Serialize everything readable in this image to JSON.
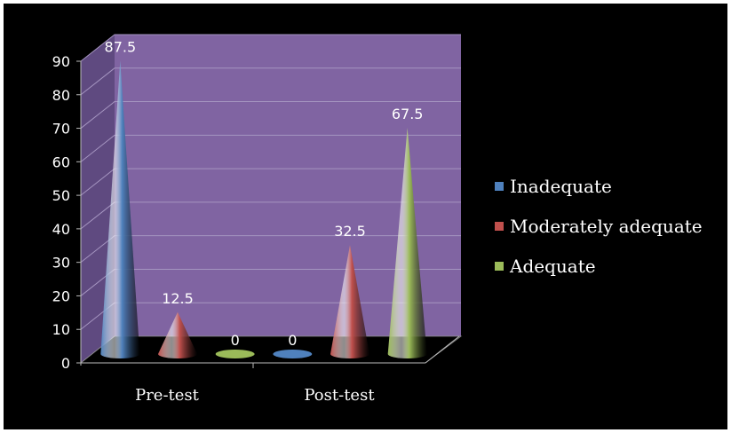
{
  "chart_data": {
    "type": "bar",
    "style": "3d-cone",
    "categories": [
      "Pre-test",
      "Post-test"
    ],
    "series": [
      {
        "name": "Inadequate",
        "values": [
          87.5,
          0
        ],
        "color": "#4f81bd"
      },
      {
        "name": "Moderately adequate",
        "values": [
          12.5,
          32.5
        ],
        "color": "#c0504d"
      },
      {
        "name": "Adequate",
        "values": [
          0,
          67.5
        ],
        "color": "#9bbb59"
      }
    ],
    "data_labels": [
      [
        "87.5",
        "0"
      ],
      [
        "12.5",
        "32.5"
      ],
      [
        "0",
        "67.5"
      ]
    ],
    "yticks": [
      "0",
      "10",
      "20",
      "30",
      "40",
      "50",
      "60",
      "70",
      "80",
      "90"
    ],
    "ylim": [
      0,
      90
    ],
    "grid": true,
    "legend_position": "right",
    "wall_color": "#8064a2",
    "background_color": "#000000"
  }
}
